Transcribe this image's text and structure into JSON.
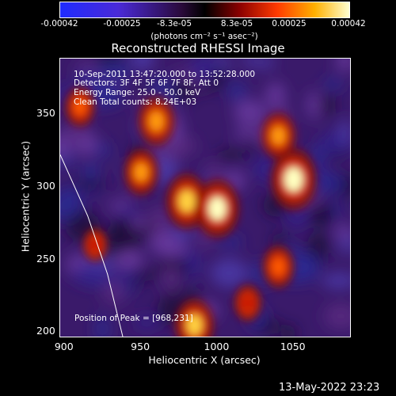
{
  "chart_data": {
    "type": "heatmap",
    "title": "Reconstructed RHESSI Image",
    "xlabel": "Heliocentric X (arcsec)",
    "ylabel": "Heliocentric Y (arcsec)",
    "xlim": [
      897,
      1087
    ],
    "ylim": [
      197,
      388
    ],
    "xticks": [
      "900",
      "950",
      "1000",
      "1050"
    ],
    "yticks": [
      "350",
      "300",
      "250",
      "200"
    ],
    "colorbar": {
      "units": "(photons cm⁻² s⁻¹ asec⁻²)",
      "range": [
        -0.00042,
        0.00042
      ],
      "ticks": [
        "-0.00042",
        "-0.00025",
        "-8.3e-05",
        "8.3e-05",
        "0.00025",
        "0.00042"
      ]
    },
    "annotations": [
      "10-Sep-2011 13:47:20.000 to 13:52:28.000",
      "Detectors: 3F 4F 5F 6F 7F 8F, Att 0",
      "Energy Range: 25.0 - 50.0 keV",
      "Clean     Total counts: 8.24E+03"
    ],
    "peak_label": "Position of Peak = [968,231]",
    "limb_points": [
      [
        897,
        322
      ],
      [
        915,
        280
      ],
      [
        928,
        240
      ],
      [
        938,
        197
      ]
    ],
    "bright_sources": [
      {
        "x": 960,
        "y": 345,
        "intensity": 0.00032
      },
      {
        "x": 950,
        "y": 310,
        "intensity": 0.0003
      },
      {
        "x": 980,
        "y": 290,
        "intensity": 0.00036
      },
      {
        "x": 1000,
        "y": 285,
        "intensity": 0.00038
      },
      {
        "x": 1050,
        "y": 305,
        "intensity": 0.0004
      },
      {
        "x": 1040,
        "y": 335,
        "intensity": 0.0003
      },
      {
        "x": 1040,
        "y": 245,
        "intensity": 0.00028
      },
      {
        "x": 985,
        "y": 205,
        "intensity": 0.00034
      },
      {
        "x": 910,
        "y": 355,
        "intensity": 0.00026
      },
      {
        "x": 920,
        "y": 260,
        "intensity": 0.00022
      },
      {
        "x": 1020,
        "y": 220,
        "intensity": 0.00024
      }
    ]
  },
  "footer": {
    "datestamp": "13-May-2022 23:23"
  }
}
